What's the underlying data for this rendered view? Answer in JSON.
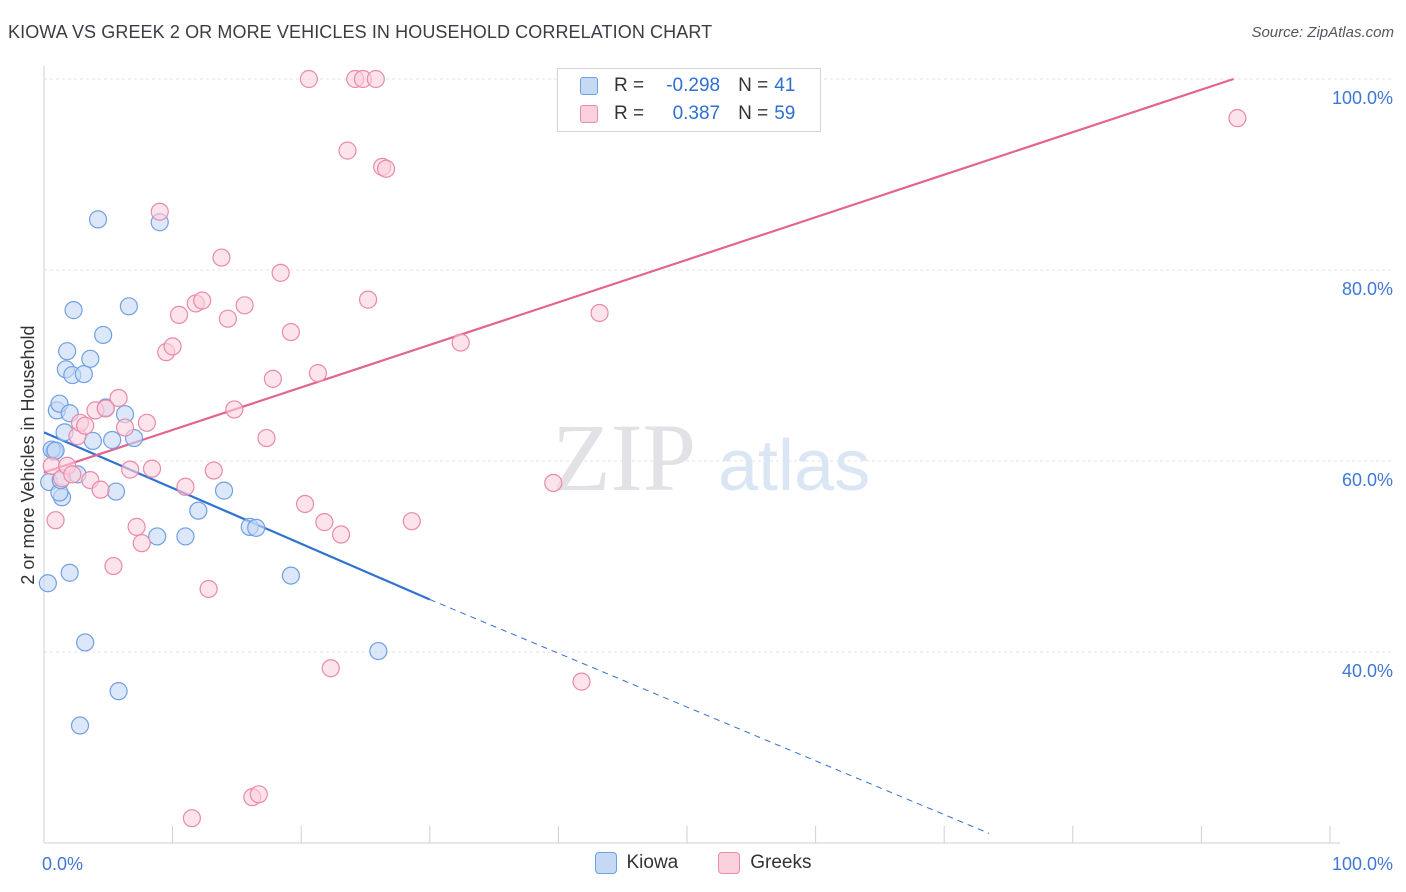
{
  "header": {
    "title": "KIOWA VS GREEK 2 OR MORE VEHICLES IN HOUSEHOLD CORRELATION CHART",
    "source": "Source: ZipAtlas.com"
  },
  "watermark": {
    "zip": "ZIP",
    "atlas": "atlas"
  },
  "legend_top": {
    "rows": [
      {
        "r_label": "R =",
        "r_value": "-0.298",
        "n_label": "N =",
        "n_value": "41",
        "color": "#a8c8f4"
      },
      {
        "r_label": "R =",
        "r_value": "0.387",
        "n_label": "N =",
        "n_value": "59",
        "color": "#f7b8cc"
      }
    ]
  },
  "chart_data": {
    "type": "scatter",
    "ylabel": "2 or more Vehicles in Household",
    "xlim": [
      0,
      100
    ],
    "ylim": [
      20,
      100
    ],
    "y_ticks": [
      {
        "value": 100,
        "label": "100.0%"
      },
      {
        "value": 80,
        "label": "80.0%"
      },
      {
        "value": 60,
        "label": "60.0%"
      },
      {
        "value": 40,
        "label": "40.0%"
      }
    ],
    "x_tick_labels": {
      "left": "0.0%",
      "right": "100.0%"
    },
    "series": [
      {
        "name": "Kiowa",
        "color": "#6fa0e4",
        "fill": "#c5d9f5",
        "line_color": "#2f72d2",
        "trend": {
          "x0": 0,
          "y0": 63.0,
          "x1": 30,
          "y1": 45.5,
          "dash_to_x": 73.5,
          "dash_to_y": 21.0
        },
        "points": [
          [
            0.4,
            57.8
          ],
          [
            0.3,
            47.2
          ],
          [
            0.8,
            61.0
          ],
          [
            0.6,
            61.2
          ],
          [
            1.0,
            65.3
          ],
          [
            1.2,
            66.0
          ],
          [
            1.4,
            56.2
          ],
          [
            1.2,
            56.7
          ],
          [
            1.6,
            63.0
          ],
          [
            1.7,
            69.6
          ],
          [
            1.8,
            71.5
          ],
          [
            2.0,
            65.0
          ],
          [
            2.2,
            69.0
          ],
          [
            2.0,
            48.3
          ],
          [
            2.3,
            75.8
          ],
          [
            2.6,
            58.6
          ],
          [
            3.1,
            69.1
          ],
          [
            3.2,
            41.0
          ],
          [
            3.6,
            70.7
          ],
          [
            3.8,
            62.1
          ],
          [
            4.2,
            85.3
          ],
          [
            4.6,
            73.2
          ],
          [
            4.8,
            65.6
          ],
          [
            5.3,
            62.2
          ],
          [
            5.6,
            56.8
          ],
          [
            5.8,
            35.9
          ],
          [
            6.3,
            64.9
          ],
          [
            6.6,
            76.2
          ],
          [
            7.0,
            62.4
          ],
          [
            9.0,
            85.0
          ],
          [
            8.8,
            52.1
          ],
          [
            11.0,
            52.1
          ],
          [
            12.0,
            54.8
          ],
          [
            14.0,
            56.9
          ],
          [
            16.0,
            53.1
          ],
          [
            16.5,
            53.0
          ],
          [
            19.2,
            48.0
          ],
          [
            26.0,
            40.1
          ],
          [
            2.8,
            32.3
          ],
          [
            1.3,
            58.0
          ],
          [
            0.9,
            61.1
          ]
        ]
      },
      {
        "name": "Greeks",
        "color": "#ea8aa8",
        "fill": "#fbd0dd",
        "line_color": "#e3648c",
        "trend": {
          "x0": 0,
          "y0": 58.8,
          "x1": 92.5,
          "y1": 100.0
        },
        "points": [
          [
            0.6,
            59.5
          ],
          [
            0.9,
            53.8
          ],
          [
            1.4,
            58.2
          ],
          [
            1.8,
            59.5
          ],
          [
            2.2,
            58.6
          ],
          [
            2.6,
            62.6
          ],
          [
            2.8,
            64.0
          ],
          [
            3.2,
            63.7
          ],
          [
            3.6,
            58.0
          ],
          [
            4.0,
            65.3
          ],
          [
            4.4,
            57.0
          ],
          [
            4.8,
            65.5
          ],
          [
            5.4,
            49.0
          ],
          [
            5.8,
            66.6
          ],
          [
            6.3,
            63.5
          ],
          [
            6.7,
            59.1
          ],
          [
            7.2,
            53.1
          ],
          [
            7.6,
            51.4
          ],
          [
            8.0,
            64.0
          ],
          [
            8.4,
            59.2
          ],
          [
            9.0,
            86.1
          ],
          [
            9.5,
            71.4
          ],
          [
            10.0,
            72.0
          ],
          [
            10.5,
            75.3
          ],
          [
            11.0,
            57.3
          ],
          [
            11.5,
            22.6
          ],
          [
            11.8,
            76.5
          ],
          [
            12.3,
            76.8
          ],
          [
            12.8,
            46.6
          ],
          [
            13.2,
            59.0
          ],
          [
            13.8,
            81.3
          ],
          [
            14.3,
            74.9
          ],
          [
            14.8,
            65.4
          ],
          [
            15.6,
            76.3
          ],
          [
            16.2,
            24.8
          ],
          [
            16.7,
            25.1
          ],
          [
            17.3,
            62.4
          ],
          [
            17.8,
            68.6
          ],
          [
            18.4,
            79.7
          ],
          [
            19.2,
            73.5
          ],
          [
            20.3,
            55.5
          ],
          [
            21.3,
            69.2
          ],
          [
            21.8,
            53.6
          ],
          [
            22.3,
            38.3
          ],
          [
            23.1,
            52.3
          ],
          [
            23.6,
            92.5
          ],
          [
            24.2,
            100.0
          ],
          [
            24.8,
            100.0
          ],
          [
            25.2,
            76.9
          ],
          [
            25.8,
            100.0
          ],
          [
            26.3,
            90.8
          ],
          [
            26.6,
            90.6
          ],
          [
            20.6,
            100.0
          ],
          [
            28.6,
            53.7
          ],
          [
            32.4,
            72.4
          ],
          [
            39.6,
            57.7
          ],
          [
            41.8,
            36.9
          ],
          [
            43.2,
            75.5
          ],
          [
            92.8,
            95.9
          ]
        ]
      }
    ]
  }
}
